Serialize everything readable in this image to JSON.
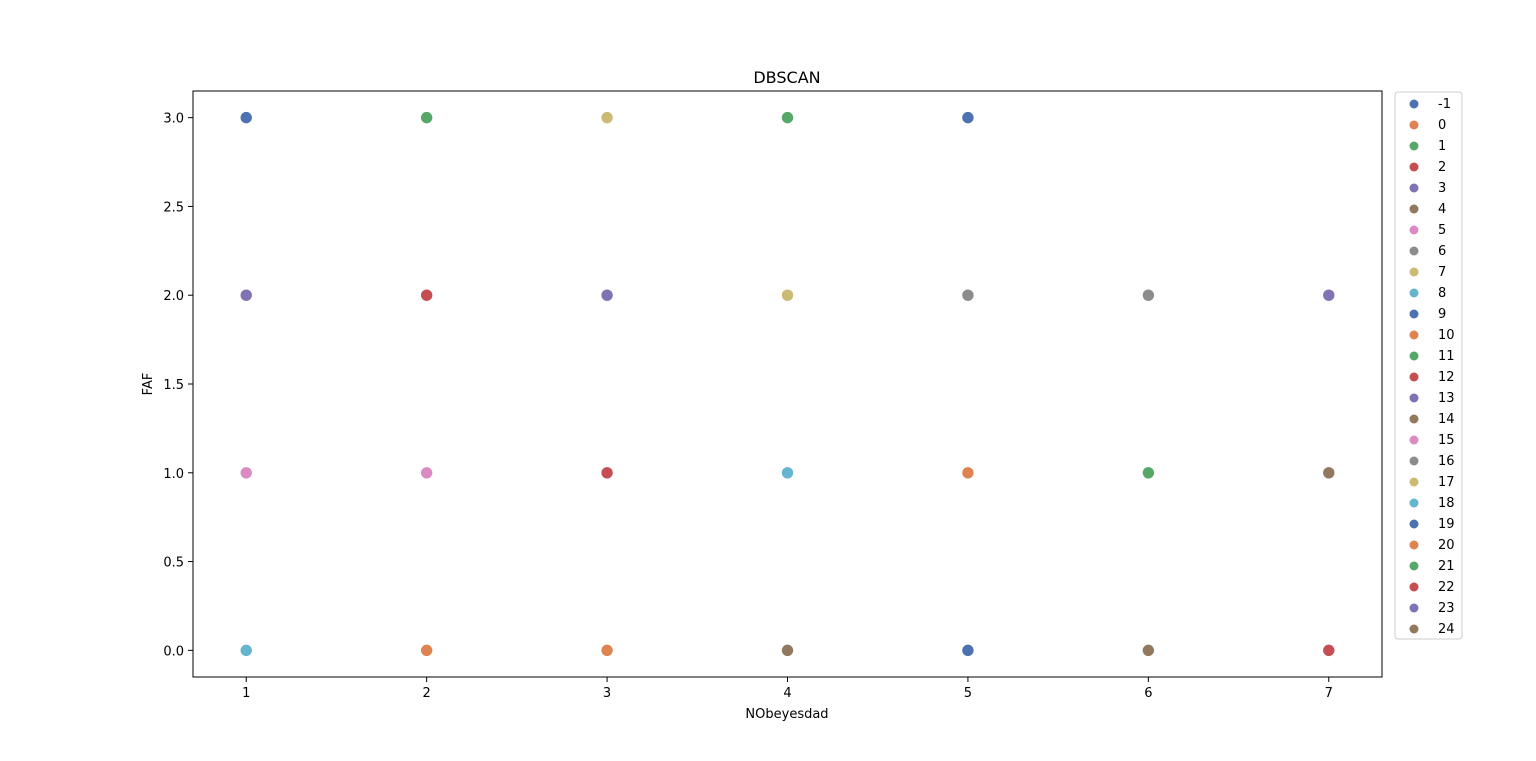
{
  "chart_data": {
    "type": "scatter",
    "title": "DBSCAN",
    "xlabel": "NObeyesdad",
    "ylabel": "FAF",
    "xlim": [
      0.705,
      7.295
    ],
    "ylim": [
      -0.15,
      3.15
    ],
    "xticks": [
      1,
      2,
      3,
      4,
      5,
      6,
      7
    ],
    "xtick_labels": [
      "1",
      "2",
      "3",
      "4",
      "5",
      "6",
      "7"
    ],
    "yticks": [
      0.0,
      0.5,
      1.0,
      1.5,
      2.0,
      2.5,
      3.0
    ],
    "ytick_labels": [
      "0.0",
      "0.5",
      "1.0",
      "1.5",
      "2.0",
      "2.5",
      "3.0"
    ],
    "grid": false,
    "legend_position": "outside-right",
    "palette": [
      "#4c72b0",
      "#dd8452",
      "#55a868",
      "#c44e52",
      "#8172b3",
      "#937860",
      "#da8bc3",
      "#8c8c8c",
      "#ccb974",
      "#64b5cd"
    ],
    "series": [
      {
        "name": "-1",
        "points": [
          [
            1,
            3
          ],
          [
            5,
            3
          ]
        ]
      },
      {
        "name": "0",
        "points": [
          [
            5,
            1
          ]
        ]
      },
      {
        "name": "1",
        "points": [
          [
            4,
            3
          ]
        ]
      },
      {
        "name": "2",
        "points": [
          [
            3,
            1
          ]
        ]
      },
      {
        "name": "3",
        "points": [
          [
            7,
            2
          ]
        ]
      },
      {
        "name": "4",
        "points": [
          [
            7,
            1
          ]
        ]
      },
      {
        "name": "5",
        "points": [
          [
            2,
            1
          ]
        ]
      },
      {
        "name": "6",
        "points": [
          [
            5,
            2
          ]
        ]
      },
      {
        "name": "7",
        "points": [
          [
            3,
            3
          ]
        ]
      },
      {
        "name": "8",
        "points": [
          [
            4,
            1
          ]
        ]
      },
      {
        "name": "9",
        "points": [
          [
            4,
            0
          ]
        ]
      },
      {
        "name": "10",
        "points": [
          [
            2,
            0
          ]
        ]
      },
      {
        "name": "11",
        "points": [
          [
            2,
            3
          ]
        ]
      },
      {
        "name": "12",
        "points": [
          [
            2,
            2
          ]
        ]
      },
      {
        "name": "13",
        "points": [
          [
            3,
            2
          ]
        ]
      },
      {
        "name": "14",
        "points": [
          [
            4,
            0
          ]
        ]
      },
      {
        "name": "15",
        "points": [
          [
            1,
            1
          ]
        ]
      },
      {
        "name": "16",
        "points": [
          [
            6,
            2
          ]
        ]
      },
      {
        "name": "17",
        "points": [
          [
            4,
            2
          ]
        ]
      },
      {
        "name": "18",
        "points": [
          [
            1,
            0
          ]
        ]
      },
      {
        "name": "19",
        "points": [
          [
            5,
            0
          ]
        ]
      },
      {
        "name": "20",
        "points": [
          [
            3,
            0
          ]
        ]
      },
      {
        "name": "21",
        "points": [
          [
            6,
            1
          ]
        ]
      },
      {
        "name": "22",
        "points": [
          [
            7,
            0
          ]
        ]
      },
      {
        "name": "23",
        "points": [
          [
            1,
            2
          ]
        ]
      },
      {
        "name": "24",
        "points": [
          [
            6,
            0
          ]
        ]
      }
    ]
  }
}
